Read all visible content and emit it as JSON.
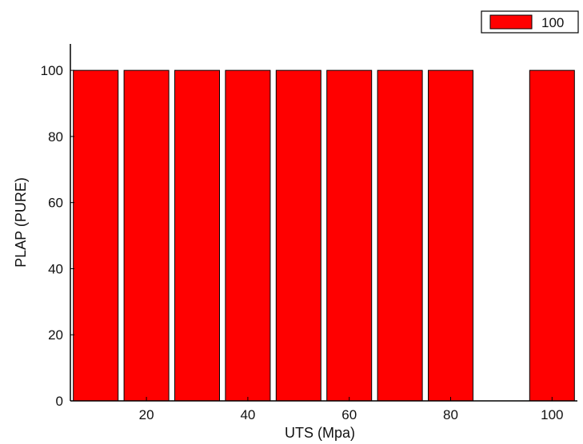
{
  "chart_data": {
    "type": "bar",
    "x": [
      10,
      20,
      30,
      40,
      50,
      60,
      70,
      80,
      100
    ],
    "series": [
      {
        "name": "100",
        "values": [
          100,
          100,
          100,
          100,
          100,
          100,
          100,
          100,
          100
        ],
        "color": "#ff0000"
      }
    ],
    "xlabel": "UTS (Mpa)",
    "ylabel": "PLAP (PURE)",
    "xlim": [
      5,
      105
    ],
    "ylim": [
      0,
      108
    ],
    "xticks": [
      20,
      40,
      60,
      80,
      100
    ],
    "yticks": [
      0,
      20,
      40,
      60,
      80,
      100
    ],
    "grid": false,
    "legend_position": "top-right"
  }
}
